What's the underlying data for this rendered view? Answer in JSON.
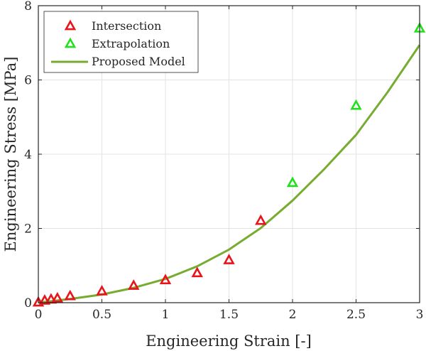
{
  "chart_data": {
    "type": "scatter",
    "title": "",
    "xlabel": "Engineering Strain [-]",
    "ylabel": "Engineering Stress [MPa]",
    "xlim": [
      0,
      3
    ],
    "ylim": [
      0,
      8
    ],
    "xticks": [
      0,
      0.5,
      1,
      1.5,
      2,
      2.5,
      3
    ],
    "xtick_labels": [
      "0",
      "0.5",
      "1",
      "1.5",
      "2",
      "2.5",
      "3"
    ],
    "yticks": [
      0,
      2,
      4,
      6,
      8
    ],
    "ytick_labels": [
      "0",
      "2",
      "4",
      "6",
      "8"
    ],
    "grid": true,
    "legend_position": "top-left",
    "series": [
      {
        "name": "Intersection",
        "kind": "marker",
        "marker": "triangle",
        "color": "#e8141b",
        "x": [
          0,
          0.05,
          0.1,
          0.15,
          0.25,
          0.5,
          0.75,
          1.0,
          1.25,
          1.5,
          1.75
        ],
        "y": [
          0.0,
          0.05,
          0.08,
          0.11,
          0.17,
          0.3,
          0.45,
          0.6,
          0.79,
          1.14,
          2.2
        ]
      },
      {
        "name": "Extrapolation",
        "kind": "marker",
        "marker": "triangle",
        "color": "#22e01e",
        "x": [
          2.0,
          2.5,
          3.0
        ],
        "y": [
          3.22,
          5.3,
          7.38
        ]
      },
      {
        "name": "Proposed Model",
        "kind": "line",
        "color": "#77ac30",
        "x": [
          0,
          0.25,
          0.5,
          0.75,
          1.0,
          1.25,
          1.5,
          1.75,
          2.0,
          2.25,
          2.5,
          2.75,
          3.0
        ],
        "y": [
          0.0,
          0.1,
          0.22,
          0.4,
          0.64,
          0.98,
          1.43,
          2.01,
          2.75,
          3.6,
          4.52,
          5.68,
          6.94
        ]
      }
    ]
  }
}
